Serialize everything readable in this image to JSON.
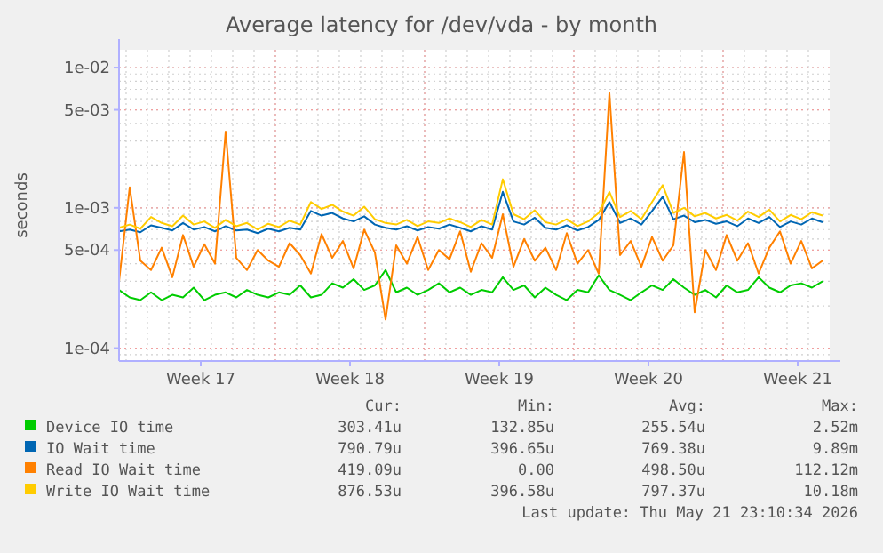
{
  "chart_data": {
    "type": "line",
    "title": "Average latency for /dev/vda - by month",
    "ylabel": "seconds",
    "log": "y",
    "grid": true,
    "legend": "bottom",
    "marker": "none",
    "line_style": "solid",
    "xlim": [
      "2026-04-18T16:00",
      "2026-05-22T00:00"
    ],
    "xticks": [
      {
        "value": "2026-04-22T12:00",
        "label": "Week 17"
      },
      {
        "value": "2026-04-29T12:00",
        "label": "Week 18"
      },
      {
        "value": "2026-05-06T12:00",
        "label": "Week 19"
      },
      {
        "value": "2026-05-13T12:00",
        "label": "Week 20"
      },
      {
        "value": "2026-05-20T12:00",
        "label": "Week 21"
      }
    ],
    "ylim": [
      8.1e-05,
      0.0134
    ],
    "yticks": [
      {
        "value": 0.0001,
        "label": "1e-04"
      },
      {
        "value": 0.0005,
        "label": "5e-04"
      },
      {
        "value": 0.001,
        "label": "1e-03"
      },
      {
        "value": 0.005,
        "label": "5e-03"
      },
      {
        "value": 0.01,
        "label": "1e-02"
      }
    ],
    "x": [
      "2026-04-18T16:00",
      "2026-04-19T04:00",
      "2026-04-19T16:00",
      "2026-04-20T04:00",
      "2026-04-20T16:00",
      "2026-04-21T04:00",
      "2026-04-21T16:00",
      "2026-04-22T04:00",
      "2026-04-22T16:00",
      "2026-04-23T04:00",
      "2026-04-23T16:00",
      "2026-04-24T04:00",
      "2026-04-24T16:00",
      "2026-04-25T04:00",
      "2026-04-25T16:00",
      "2026-04-26T04:00",
      "2026-04-26T16:00",
      "2026-04-27T04:00",
      "2026-04-27T16:00",
      "2026-04-28T04:00",
      "2026-04-28T16:00",
      "2026-04-29T04:00",
      "2026-04-29T16:00",
      "2026-04-30T04:00",
      "2026-04-30T16:00",
      "2026-05-01T04:00",
      "2026-05-01T16:00",
      "2026-05-02T04:00",
      "2026-05-02T16:00",
      "2026-05-03T04:00",
      "2026-05-03T16:00",
      "2026-05-04T04:00",
      "2026-05-04T16:00",
      "2026-05-05T04:00",
      "2026-05-05T16:00",
      "2026-05-06T04:00",
      "2026-05-06T16:00",
      "2026-05-07T04:00",
      "2026-05-07T16:00",
      "2026-05-08T04:00",
      "2026-05-08T16:00",
      "2026-05-09T04:00",
      "2026-05-09T16:00",
      "2026-05-10T04:00",
      "2026-05-10T16:00",
      "2026-05-11T04:00",
      "2026-05-11T16:00",
      "2026-05-12T04:00",
      "2026-05-12T16:00",
      "2026-05-13T04:00",
      "2026-05-13T16:00",
      "2026-05-14T04:00",
      "2026-05-14T16:00",
      "2026-05-15T04:00",
      "2026-05-15T16:00",
      "2026-05-16T04:00",
      "2026-05-16T16:00",
      "2026-05-17T04:00",
      "2026-05-17T16:00",
      "2026-05-18T04:00",
      "2026-05-18T16:00",
      "2026-05-19T04:00",
      "2026-05-19T16:00",
      "2026-05-20T04:00",
      "2026-05-20T16:00",
      "2026-05-21T04:00",
      "2026-05-21T16:00"
    ],
    "series": [
      {
        "name": "Device IO time",
        "color": "#00cc00",
        "values": [
          0.00026,
          0.00023,
          0.00022,
          0.00025,
          0.00022,
          0.00024,
          0.00023,
          0.00027,
          0.00022,
          0.00024,
          0.00025,
          0.00023,
          0.00026,
          0.00024,
          0.00023,
          0.00025,
          0.00024,
          0.00028,
          0.00023,
          0.00024,
          0.00029,
          0.00027,
          0.00031,
          0.00026,
          0.00028,
          0.00036,
          0.00025,
          0.00027,
          0.00024,
          0.00026,
          0.00029,
          0.00025,
          0.00027,
          0.00024,
          0.00026,
          0.00025,
          0.00032,
          0.00026,
          0.00028,
          0.00023,
          0.00027,
          0.00024,
          0.00022,
          0.00026,
          0.00025,
          0.00033,
          0.00026,
          0.00024,
          0.00022,
          0.00025,
          0.00028,
          0.00026,
          0.00031,
          0.00027,
          0.00024,
          0.00026,
          0.00023,
          0.00028,
          0.00025,
          0.00026,
          0.00032,
          0.00027,
          0.00025,
          0.00028,
          0.00029,
          0.00027,
          0.0003
        ]
      },
      {
        "name": "IO Wait time",
        "color": "#0066b3",
        "values": [
          0.00068,
          0.0007,
          0.00067,
          0.00075,
          0.00072,
          0.00069,
          0.00078,
          0.0007,
          0.00073,
          0.00068,
          0.00074,
          0.00069,
          0.0007,
          0.00066,
          0.00071,
          0.00068,
          0.00072,
          0.0007,
          0.00095,
          0.00088,
          0.00092,
          0.00084,
          0.0008,
          0.00087,
          0.00076,
          0.00072,
          0.0007,
          0.00074,
          0.00069,
          0.00073,
          0.00071,
          0.00076,
          0.00072,
          0.00068,
          0.00074,
          0.0007,
          0.0013,
          0.0008,
          0.00076,
          0.00085,
          0.00072,
          0.0007,
          0.00075,
          0.00069,
          0.00073,
          0.00082,
          0.0011,
          0.00078,
          0.00084,
          0.00076,
          0.00095,
          0.0012,
          0.00083,
          0.00088,
          0.00079,
          0.00082,
          0.00077,
          0.0008,
          0.00074,
          0.00084,
          0.00078,
          0.00086,
          0.00073,
          0.0008,
          0.00076,
          0.00084,
          0.00079
        ]
      },
      {
        "name": "Read IO Wait time",
        "color": "#ff8000",
        "values": [
          0.0003,
          0.0014,
          0.00042,
          0.00036,
          0.00052,
          0.00032,
          0.00064,
          0.00038,
          0.00055,
          0.0004,
          0.0035,
          0.00044,
          0.00036,
          0.0005,
          0.00042,
          0.00038,
          0.00056,
          0.00046,
          0.00034,
          0.00065,
          0.00044,
          0.00058,
          0.00037,
          0.0007,
          0.00048,
          0.00016,
          0.00054,
          0.0004,
          0.00062,
          0.00036,
          0.0005,
          0.00043,
          0.00068,
          0.00035,
          0.00056,
          0.00044,
          0.0009,
          0.00038,
          0.0006,
          0.00042,
          0.00052,
          0.00036,
          0.00066,
          0.0004,
          0.0005,
          0.00034,
          0.0066,
          0.00046,
          0.00058,
          0.00038,
          0.00062,
          0.00042,
          0.00054,
          0.0025,
          0.00018,
          0.0005,
          0.00036,
          0.00064,
          0.00042,
          0.00056,
          0.00034,
          0.00052,
          0.00068,
          0.0004,
          0.00058,
          0.00037,
          0.00042
        ]
      },
      {
        "name": "Write IO Wait time",
        "color": "#ffcc00",
        "values": [
          0.00072,
          0.00076,
          0.00071,
          0.00086,
          0.00078,
          0.00074,
          0.00088,
          0.00076,
          0.0008,
          0.00072,
          0.00082,
          0.00074,
          0.00078,
          0.0007,
          0.00077,
          0.00073,
          0.00081,
          0.00076,
          0.0011,
          0.00098,
          0.00105,
          0.00094,
          0.00088,
          0.00102,
          0.00083,
          0.00078,
          0.00076,
          0.00082,
          0.00074,
          0.0008,
          0.00078,
          0.00084,
          0.00079,
          0.00073,
          0.00082,
          0.00076,
          0.0016,
          0.0009,
          0.00083,
          0.00096,
          0.00079,
          0.00076,
          0.00083,
          0.00074,
          0.0008,
          0.00092,
          0.0013,
          0.00086,
          0.00095,
          0.00083,
          0.0011,
          0.00145,
          0.00092,
          0.001,
          0.00087,
          0.00092,
          0.00084,
          0.00089,
          0.00081,
          0.00094,
          0.00086,
          0.00097,
          0.0008,
          0.00089,
          0.00083,
          0.00093,
          0.00088
        ]
      }
    ],
    "annotations": [
      "Cur:",
      "Min:",
      "Avg:",
      "Max:",
      "303.41u",
      "132.85u",
      "255.54u",
      "2.52m",
      "790.79u",
      "396.65u",
      "769.38u",
      "9.89m",
      "419.09u",
      "0.00",
      "498.50u",
      "112.12m",
      "876.53u",
      "396.58u",
      "797.37u",
      "10.18m",
      "Last update: Thu May 21 23:10:34 2026"
    ]
  }
}
